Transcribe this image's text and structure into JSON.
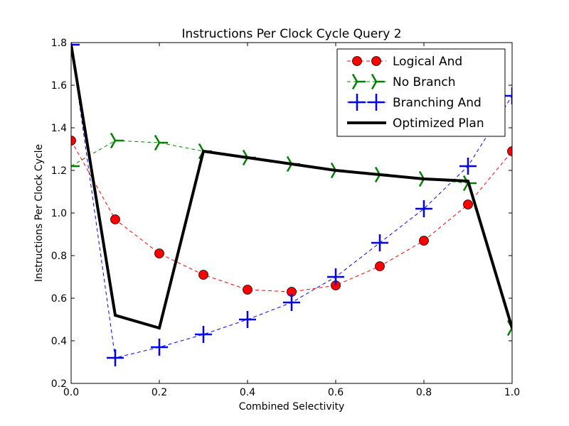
{
  "chart_data": {
    "type": "line",
    "title": "Instructions Per Clock Cycle Query 2",
    "xlabel": "Combined Selectivity",
    "ylabel": "Instructions Per Clock Cycle",
    "xlim": [
      0.0,
      1.0
    ],
    "ylim": [
      0.2,
      1.8
    ],
    "xticks": [
      "0.0",
      "0.2",
      "0.4",
      "0.6",
      "0.8",
      "1.0"
    ],
    "yticks": [
      "0.2",
      "0.4",
      "0.6",
      "0.8",
      "1.0",
      "1.2",
      "1.4",
      "1.6",
      "1.8"
    ],
    "x": [
      0.0,
      0.1,
      0.2,
      0.3,
      0.4,
      0.5,
      0.6,
      0.7,
      0.8,
      0.9,
      1.0
    ],
    "legend_position": "top-right",
    "grid": false,
    "series": [
      {
        "name": "Logical And",
        "color": "#ff0000",
        "style": "dashed",
        "marker": "circle",
        "values": [
          1.34,
          0.97,
          0.81,
          0.71,
          0.64,
          0.63,
          0.66,
          0.75,
          0.87,
          1.04,
          1.29
        ]
      },
      {
        "name": "No Branch",
        "color": "#008000",
        "style": "dashed",
        "marker": "tri",
        "values": [
          1.22,
          1.34,
          1.33,
          1.29,
          1.26,
          1.23,
          1.2,
          1.18,
          1.16,
          1.14,
          0.46
        ]
      },
      {
        "name": "Branching And",
        "color": "#0000ff",
        "style": "dashed",
        "marker": "plus",
        "values": [
          1.79,
          0.32,
          0.37,
          0.43,
          0.5,
          0.58,
          0.7,
          0.86,
          1.02,
          1.22,
          1.55
        ]
      },
      {
        "name": "Optimized Plan",
        "color": "#000000",
        "style": "solid",
        "marker": "none",
        "values": [
          1.79,
          0.52,
          0.46,
          1.29,
          1.26,
          1.23,
          1.2,
          1.18,
          1.16,
          1.15,
          0.46
        ]
      }
    ]
  }
}
